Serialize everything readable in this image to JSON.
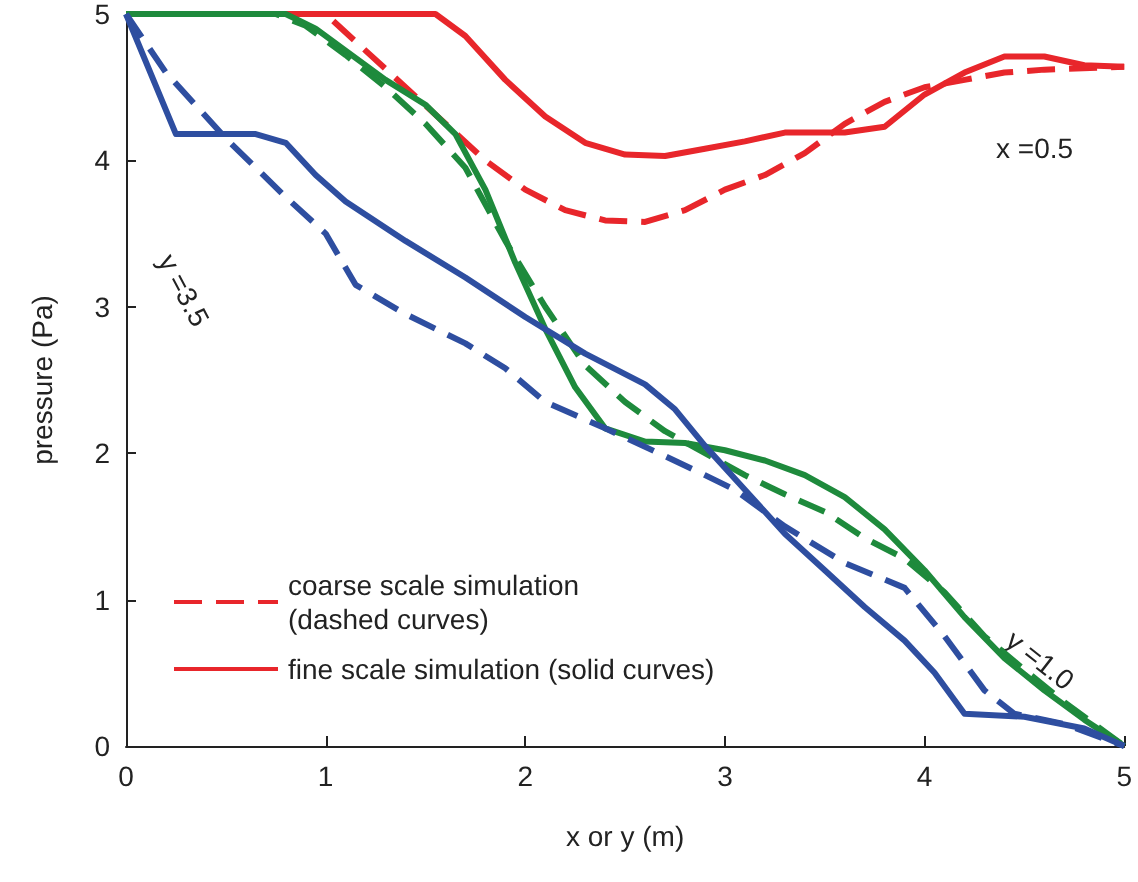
{
  "chart_data": {
    "type": "line",
    "xlabel": "x or y (m)",
    "ylabel": "pressure (Pa)",
    "xlim": [
      0,
      5
    ],
    "xticks": [
      0,
      1,
      2,
      3,
      4,
      5
    ],
    "ylim": [
      0,
      5
    ],
    "yticks": [
      0,
      1,
      2,
      3,
      4,
      5
    ],
    "grid": false,
    "legend": "bottom left",
    "marker": "none",
    "annotations": [
      "x =0.5",
      "y =1.0",
      "y =3.5"
    ],
    "series": [
      {
        "name": "coarse scale simulation\n(dashed curves)",
        "color": "#e8262b",
        "line_style": "dashed",
        "x": [
          0,
          1.0,
          1.2,
          1.4,
          1.6,
          1.8,
          2.0,
          2.2,
          2.4,
          2.6,
          2.8,
          3.0,
          3.2,
          3.4,
          3.6,
          3.8,
          4.0,
          4.2,
          4.4,
          4.6,
          5
        ],
        "values": [
          5,
          5,
          4.75,
          4.5,
          4.25,
          4.0,
          3.8,
          3.66,
          3.59,
          3.58,
          3.66,
          3.8,
          3.9,
          4.05,
          4.25,
          4.4,
          4.5,
          4.55,
          4.6,
          4.62,
          4.64
        ]
      },
      {
        "name": "fine scale simulation (solid curves)",
        "color": "#e8262b",
        "line_style": "solid",
        "x": [
          0,
          1.55,
          1.7,
          1.9,
          2.1,
          2.3,
          2.5,
          2.7,
          2.9,
          3.1,
          3.3,
          3.6,
          3.8,
          4.0,
          4.2,
          4.4,
          4.6,
          4.8,
          5
        ],
        "values": [
          5,
          5,
          4.85,
          4.55,
          4.3,
          4.12,
          4.04,
          4.03,
          4.08,
          4.13,
          4.19,
          4.19,
          4.23,
          4.45,
          4.6,
          4.71,
          4.71,
          4.65,
          4.64
        ]
      },
      {
        "color": "#1e8a3c",
        "line_style": "dashed",
        "x": [
          0,
          0.75,
          0.9,
          1.1,
          1.3,
          1.5,
          1.7,
          1.9,
          2.1,
          2.3,
          2.5,
          2.7,
          2.9,
          3.1,
          3.3,
          3.5,
          3.7,
          3.9,
          4.1,
          4.3,
          4.5,
          4.7,
          4.9,
          5
        ],
        "values": [
          5,
          5,
          4.92,
          4.72,
          4.5,
          4.25,
          3.95,
          3.45,
          3.0,
          2.6,
          2.35,
          2.15,
          2.0,
          1.85,
          1.72,
          1.6,
          1.42,
          1.28,
          1.05,
          0.75,
          0.52,
          0.3,
          0.1,
          0
        ]
      },
      {
        "color": "#1e8a3c",
        "line_style": "solid",
        "x": [
          0,
          0.8,
          0.95,
          1.1,
          1.3,
          1.5,
          1.65,
          1.8,
          1.95,
          2.1,
          2.25,
          2.4,
          2.6,
          2.8,
          3.0,
          3.2,
          3.4,
          3.6,
          3.8,
          4.0,
          4.2,
          4.4,
          4.6,
          4.8,
          5
        ],
        "values": [
          5,
          5,
          4.9,
          4.75,
          4.55,
          4.38,
          4.18,
          3.8,
          3.3,
          2.85,
          2.45,
          2.17,
          2.08,
          2.07,
          2.02,
          1.95,
          1.85,
          1.7,
          1.48,
          1.2,
          0.88,
          0.6,
          0.38,
          0.18,
          0
        ]
      },
      {
        "color": "#2e4ea0",
        "line_style": "dashed",
        "x": [
          0,
          0.2,
          0.5,
          0.8,
          1.0,
          1.15,
          1.4,
          1.7,
          1.9,
          2.1,
          2.4,
          2.7,
          2.9,
          3.05,
          3.3,
          3.6,
          3.9,
          4.1,
          4.3,
          4.45,
          4.7,
          5
        ],
        "values": [
          5,
          4.6,
          4.15,
          3.75,
          3.5,
          3.15,
          2.95,
          2.75,
          2.58,
          2.35,
          2.17,
          1.98,
          1.85,
          1.75,
          1.5,
          1.25,
          1.08,
          0.75,
          0.38,
          0.22,
          0.15,
          0
        ]
      },
      {
        "color": "#2e4ea0",
        "line_style": "solid",
        "x": [
          0,
          0.25,
          0.65,
          0.8,
          0.95,
          1.1,
          1.4,
          1.7,
          2.0,
          2.3,
          2.6,
          2.75,
          2.9,
          3.1,
          3.3,
          3.5,
          3.7,
          3.9,
          4.05,
          4.2,
          4.5,
          4.8,
          5
        ],
        "values": [
          5,
          4.18,
          4.18,
          4.12,
          3.9,
          3.72,
          3.45,
          3.2,
          2.93,
          2.68,
          2.47,
          2.3,
          2.05,
          1.75,
          1.45,
          1.2,
          0.95,
          0.72,
          0.5,
          0.22,
          0.2,
          0.12,
          0
        ]
      }
    ]
  }
}
